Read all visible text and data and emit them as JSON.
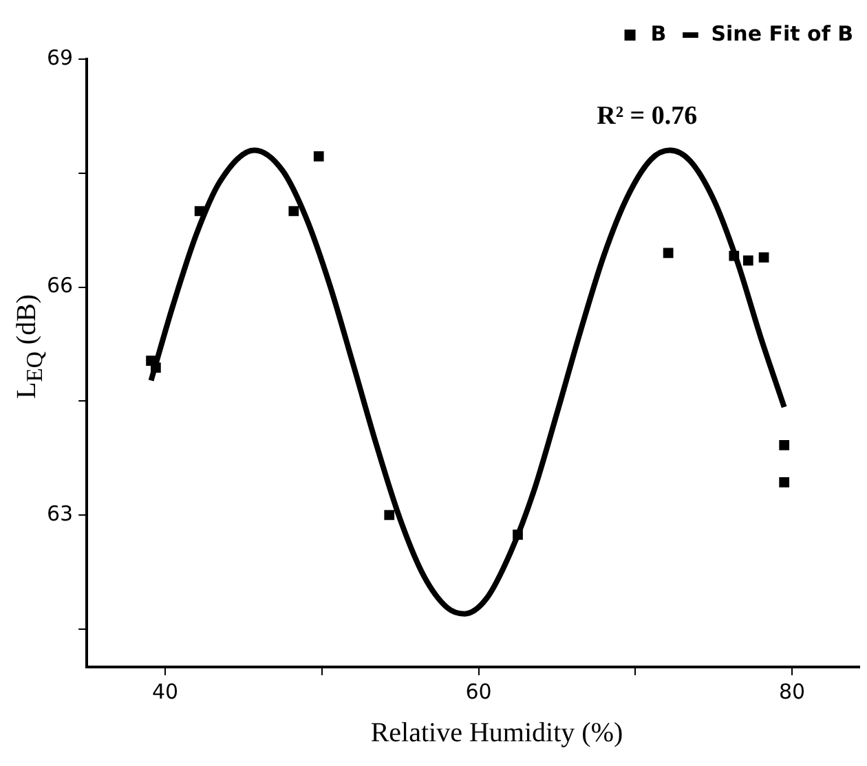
{
  "chart_data": {
    "type": "scatter",
    "xlabel": "Relative Humidity (%)",
    "ylabel": "L$_{EQ}$ (dB)",
    "xlim": [
      35,
      84.3
    ],
    "ylim": [
      61,
      69
    ],
    "xticks": [
      40,
      {
        "value": 50,
        "label": null
      },
      60,
      {
        "value": 70,
        "label": null
      },
      80
    ],
    "yticks": [
      {
        "value": 61.5,
        "label": null
      },
      63,
      {
        "value": 64.5,
        "label": null
      },
      66,
      {
        "value": 67.5,
        "label": null
      },
      69
    ],
    "grid": false,
    "legend": "top right",
    "annotations": [
      "R² = 0.76"
    ],
    "series": [
      {
        "name": "B",
        "marker": "square",
        "color": "#000000",
        "x": [
          39.1,
          39.4,
          42.2,
          48.2,
          49.8,
          54.3,
          62.5,
          72.1,
          76.3,
          77.2,
          78.2,
          79.5,
          79.5
        ],
        "values": [
          65.03,
          64.94,
          67.0,
          67.0,
          67.72,
          63.0,
          62.74,
          66.45,
          66.41,
          66.35,
          66.39,
          63.92,
          63.43
        ]
      },
      {
        "name": "Sine Fit of B",
        "type": "line",
        "marker": "none",
        "line_style": "solid",
        "color": "#000000",
        "x": [
          39.1,
          40.5,
          42,
          43.5,
          45.7,
          47.5,
          49,
          50.5,
          52,
          53.5,
          55,
          56.5,
          58,
          59.1,
          60.5,
          62,
          63.5,
          65,
          66.5,
          68,
          69.5,
          71,
          72.2,
          73.5,
          75,
          76.5,
          78,
          79.5
        ],
        "values": [
          64.77,
          65.76,
          66.7,
          67.39,
          67.8,
          67.53,
          66.91,
          66.03,
          64.98,
          63.91,
          62.94,
          62.2,
          61.78,
          61.7,
          61.9,
          62.49,
          63.3,
          64.34,
          65.42,
          66.42,
          67.19,
          67.68,
          67.8,
          67.66,
          67.15,
          66.34,
          65.34,
          64.42
        ]
      }
    ]
  }
}
